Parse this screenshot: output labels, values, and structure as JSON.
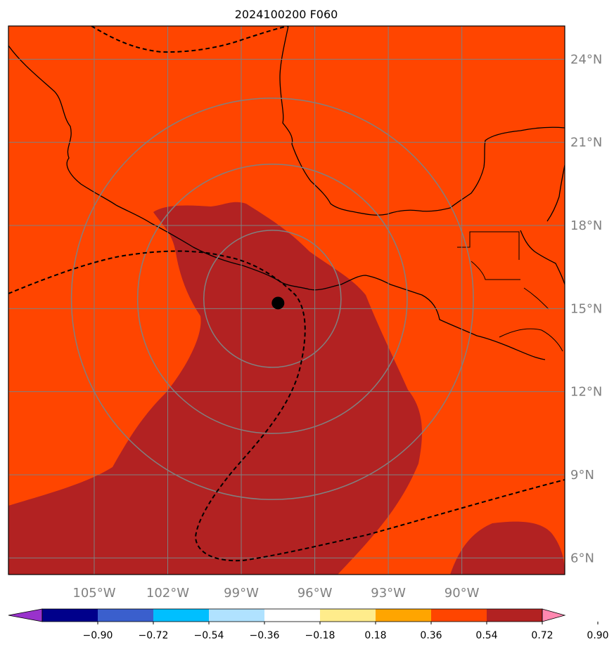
{
  "title": "2024100200 F060",
  "map": {
    "lon_range": [
      -108.5,
      -85.8
    ],
    "lat_range": [
      5.4,
      25.2
    ],
    "ocean_color": "#ff4500",
    "anomaly_color": "#b22222",
    "grid_color": "#808080",
    "lon_ticks": [
      {
        "value": -105,
        "label": "105°W"
      },
      {
        "value": -102,
        "label": "102°W"
      },
      {
        "value": -99,
        "label": "99°W"
      },
      {
        "value": -96,
        "label": "96°W"
      },
      {
        "value": -93,
        "label": "93°W"
      },
      {
        "value": -90,
        "label": "90°W"
      }
    ],
    "lat_ticks": [
      {
        "value": 6,
        "label": "6°N"
      },
      {
        "value": 9,
        "label": "9°N"
      },
      {
        "value": 12,
        "label": "12°N"
      },
      {
        "value": 15,
        "label": "15°N"
      },
      {
        "value": 18,
        "label": "18°N"
      },
      {
        "value": 21,
        "label": "21°N"
      },
      {
        "value": 24,
        "label": "24°N"
      }
    ],
    "storm_center": {
      "lon": -97.5,
      "lat": 15.2
    },
    "range_rings_deg": [
      2.8,
      5.5,
      8.2
    ]
  },
  "colorbar": {
    "colors": [
      "#9932cc",
      "#00008b",
      "#3a5fcd",
      "#00bfff",
      "#b0e2ff",
      "#ffffff",
      "#ffec8b",
      "#ffa500",
      "#ff4500",
      "#b22222",
      "#ff88b0"
    ],
    "tick_labels": [
      "−0.90",
      "−0.72",
      "−0.54",
      "−0.36",
      "−0.18",
      "0.18",
      "0.36",
      "0.54",
      "0.72",
      "0.90"
    ]
  }
}
